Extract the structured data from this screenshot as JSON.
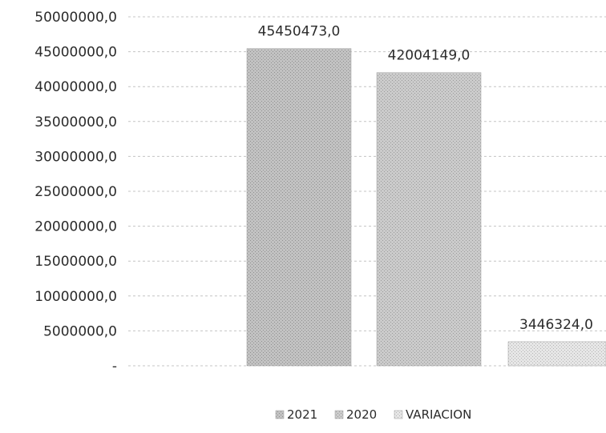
{
  "chart_data": {
    "type": "bar",
    "categories": [
      ""
    ],
    "series": [
      {
        "name": "2021",
        "values": [
          45450473.0
        ],
        "label": "45450473,0",
        "color": "#bdbdbd"
      },
      {
        "name": "2020",
        "values": [
          42004149.0
        ],
        "label": "42004149,0",
        "color": "#c9c9c9"
      },
      {
        "name": "VARIACION",
        "values": [
          3446324.0
        ],
        "label": "3446324,0",
        "color": "#e2e2e2"
      }
    ],
    "ylim": [
      0,
      50000000
    ],
    "y_ticks": [
      {
        "value": 50000000,
        "label": "50000000,0"
      },
      {
        "value": 45000000,
        "label": "45000000,0"
      },
      {
        "value": 40000000,
        "label": "40000000,0"
      },
      {
        "value": 35000000,
        "label": "35000000,0"
      },
      {
        "value": 30000000,
        "label": "30000000,0"
      },
      {
        "value": 25000000,
        "label": "25000000,0"
      },
      {
        "value": 20000000,
        "label": "20000000,0"
      },
      {
        "value": 15000000,
        "label": "15000000,0"
      },
      {
        "value": 10000000,
        "label": "10000000,0"
      },
      {
        "value": 5000000,
        "label": "5000000,0"
      },
      {
        "value": 0,
        "label": "-"
      }
    ],
    "grid": true,
    "legend": {
      "position": "bottom",
      "items": [
        "2021",
        "2020",
        "VARIACION"
      ]
    }
  }
}
